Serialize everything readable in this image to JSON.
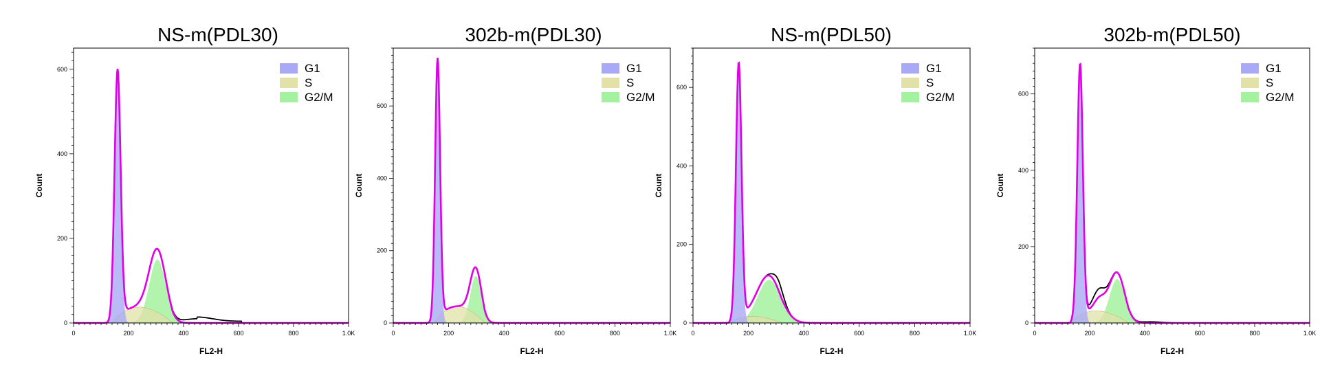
{
  "chart_data": [
    {
      "type": "area",
      "title": "NS-m(PDL30)",
      "xlabel": "FL2-H",
      "ylabel": "Count",
      "xlim": [
        0,
        1000
      ],
      "ylim": [
        0,
        650
      ],
      "xticks": [
        0,
        200,
        400,
        600,
        800,
        1000
      ],
      "xtick_labels": [
        "0",
        "200",
        "400",
        "600",
        "800",
        "1.0K"
      ],
      "yticks": [
        0,
        200,
        400,
        600
      ],
      "ytick_labels": [
        "0",
        "200",
        "400",
        "600"
      ],
      "legend": [
        "G1",
        "S",
        "G2/M"
      ],
      "legend_position": "top-right",
      "g1": {
        "mu": 160,
        "sd": 11,
        "amp": 585
      },
      "s": {
        "start": 140,
        "end": 360,
        "amp": 45
      },
      "g2m": {
        "mu": 305,
        "sd": 30,
        "amp": 150
      },
      "fit_bumps": [],
      "histogram_bumps": [
        {
          "mu": 450,
          "sd": 55,
          "amp": 10
        }
      ],
      "histogram_tail": {
        "start": 450,
        "end": 610,
        "level": 4
      }
    },
    {
      "type": "area",
      "title": "302b-m(PDL30)",
      "xlabel": "FL2-H",
      "ylabel": "Count",
      "xlim": [
        0,
        1000
      ],
      "ylim": [
        0,
        760
      ],
      "xticks": [
        0,
        200,
        400,
        600,
        800,
        1000
      ],
      "xtick_labels": [
        "0",
        "200",
        "400",
        "600",
        "800",
        "1.0K"
      ],
      "yticks": [
        0,
        200,
        400,
        600
      ],
      "ytick_labels": [
        "0",
        "200",
        "400",
        "600"
      ],
      "legend": [
        "G1",
        "S",
        "G2/M"
      ],
      "legend_position": "top-right",
      "g1": {
        "mu": 160,
        "sd": 9,
        "amp": 720
      },
      "s": {
        "start": 150,
        "end": 330,
        "amp": 55
      },
      "g2m": {
        "mu": 298,
        "sd": 20,
        "amp": 130
      },
      "fit_bumps": [],
      "histogram_bumps": [],
      "histogram_tail": null
    },
    {
      "type": "area",
      "title": "NS-m(PDL50)",
      "xlabel": "FL2-H",
      "ylabel": "Count",
      "xlim": [
        0,
        1000
      ],
      "ylim": [
        0,
        700
      ],
      "xticks": [
        0,
        200,
        400,
        600,
        800,
        1000
      ],
      "xtick_labels": [
        "0",
        "200",
        "400",
        "600",
        "800",
        "1.0K"
      ],
      "yticks": [
        0,
        200,
        400,
        600
      ],
      "ytick_labels": [
        "0",
        "200",
        "400",
        "600"
      ],
      "legend": [
        "G1",
        "S",
        "G2/M"
      ],
      "legend_position": "top-right",
      "g1": {
        "mu": 165,
        "sd": 10,
        "amp": 650
      },
      "s": {
        "start": 130,
        "end": 320,
        "amp": 20
      },
      "g2m": {
        "mu": 275,
        "sd": 42,
        "amp": 110
      },
      "fit_bumps": [],
      "histogram_bumps": [
        {
          "mu": 310,
          "sd": 18,
          "amp": 25
        }
      ],
      "histogram_tail": null
    },
    {
      "type": "area",
      "title": "302b-m(PDL50)",
      "xlabel": "FL2-H",
      "ylabel": "Count",
      "xlim": [
        0,
        1000
      ],
      "ylim": [
        0,
        720
      ],
      "xticks": [
        0,
        200,
        400,
        600,
        800,
        1000
      ],
      "xtick_labels": [
        "0",
        "200",
        "400",
        "600",
        "800",
        "1.0K"
      ],
      "yticks": [
        0,
        200,
        400,
        600
      ],
      "ytick_labels": [
        "0",
        "200",
        "400",
        "600"
      ],
      "legend": [
        "G1",
        "S",
        "G2/M"
      ],
      "legend_position": "top-right",
      "g1": {
        "mu": 165,
        "sd": 10,
        "amp": 660
      },
      "s": {
        "start": 130,
        "end": 340,
        "amp": 38
      },
      "g2m": {
        "mu": 300,
        "sd": 28,
        "amp": 115
      },
      "fit_bumps": [
        {
          "mu": 235,
          "sd": 20,
          "amp": 30
        }
      ],
      "histogram_bumps": [
        {
          "mu": 230,
          "sd": 25,
          "amp": 22
        },
        {
          "mu": 420,
          "sd": 40,
          "amp": 3
        }
      ],
      "histogram_tail": null
    }
  ],
  "colors": {
    "g1": "#a9a9f5",
    "s": "#e2e2a8",
    "g2m": "#a4f2a0",
    "fit": "#e100e6",
    "histogram": "#000000",
    "axis": "#000000"
  }
}
